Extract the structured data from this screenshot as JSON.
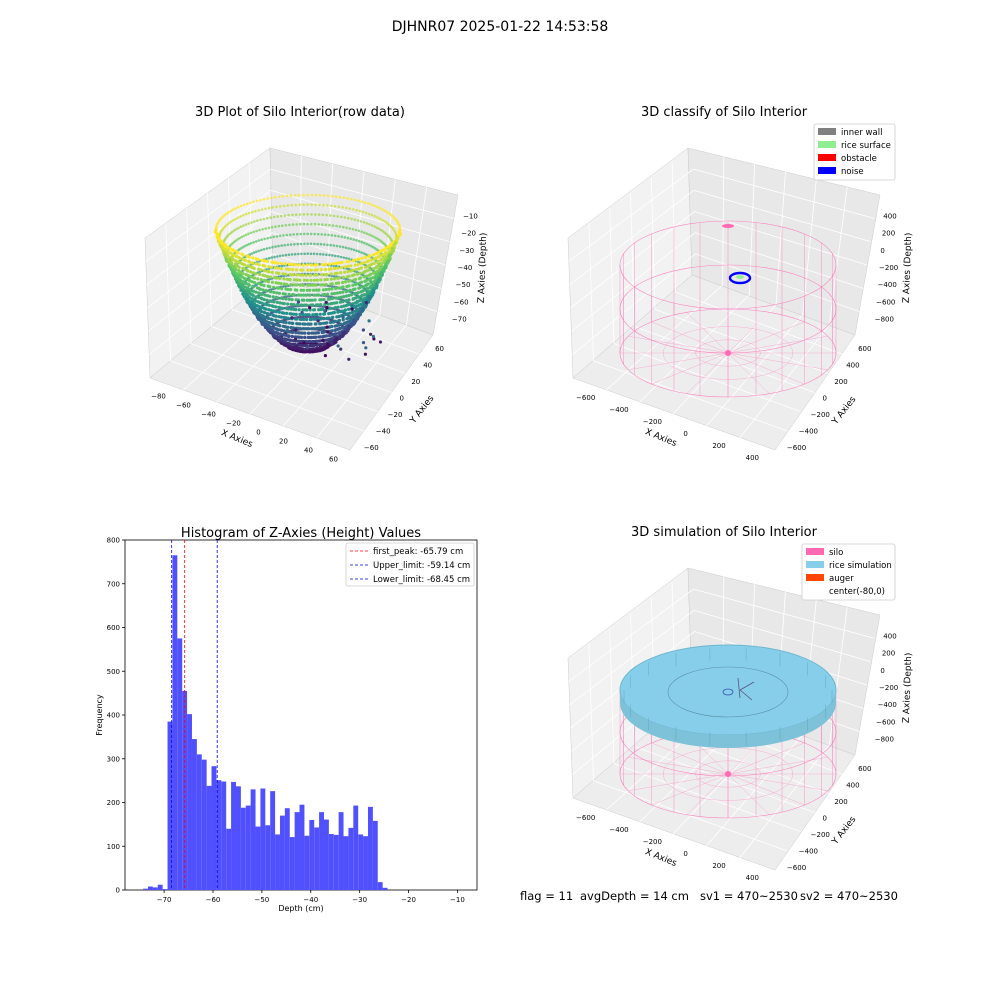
{
  "suptitle": "DJHNR07 2025-01-22 14:53:58",
  "footer": {
    "flag": "flag = 11",
    "avg": "avgDepth = 14 cm",
    "sv1": "sv1 = 470~2530",
    "sv2": "sv2 = 470~2530"
  },
  "colors": {
    "histogram_bar": "#5050ff",
    "peak_line": "#ff0000",
    "limit_line": "#0000ff",
    "silo_wire": "#ff69b4",
    "rice_sim": "#87ceeb",
    "auger": "#ff4500",
    "inner_wall": "#808080",
    "rice_surface": "#90ee90",
    "obstacle": "#ff0000",
    "noise": "#0000ff"
  },
  "chart_data": [
    {
      "type": "scatter",
      "projection": "3d",
      "title": "3D Plot of Silo Interior(row data)",
      "xlabel": "X Axies",
      "ylabel": "Y Axies",
      "zlabel": "Z Axies (Depth)",
      "xticks": [
        "−80",
        "−60",
        "−40",
        "−20",
        "0",
        "20",
        "40",
        "60"
      ],
      "yticks": [
        "−60",
        "−40",
        "−20",
        "0",
        "20",
        "40",
        "60"
      ],
      "zticks": [
        "−10",
        "−20",
        "−30",
        "−40",
        "−50",
        "−60",
        "−70"
      ],
      "xlim": [
        -80,
        70
      ],
      "ylim": [
        -65,
        65
      ],
      "zlim": [
        -75,
        -10
      ],
      "colormap": "viridis",
      "shape": "bowl"
    },
    {
      "type": "scatter",
      "projection": "3d",
      "title": "3D classify of Silo Interior",
      "xlabel": "X Axies",
      "ylabel": "Y Axies",
      "zlabel": "Z Axies (Depth)",
      "xticks": [
        "−600",
        "−400",
        "−200",
        "0",
        "200",
        "400"
      ],
      "yticks": [
        "−600",
        "−400",
        "−200",
        "0",
        "200",
        "400",
        "600"
      ],
      "zticks": [
        "400",
        "200",
        "0",
        "−200",
        "−400",
        "−600",
        "−800"
      ],
      "legend": [
        "inner wall",
        "rice surface",
        "obstacle",
        "noise"
      ],
      "legend_loc": "upper right"
    },
    {
      "type": "bar",
      "title": "Histogram of Z-Axies (Height) Values",
      "xlabel": "Depth (cm)",
      "ylabel": "Frequency",
      "xlim": [
        -78,
        -6
      ],
      "ylim": [
        0,
        800
      ],
      "xticks": [
        -70,
        -60,
        -50,
        -40,
        -30,
        -20,
        -10
      ],
      "xtick_labels": [
        "−70",
        "−60",
        "−50",
        "−40",
        "−30",
        "−20",
        "−10"
      ],
      "yticks": [
        0,
        100,
        200,
        300,
        400,
        500,
        600,
        700,
        800
      ],
      "bin_start": -74.3,
      "bin_width": 1.0,
      "values": [
        3,
        8,
        6,
        12,
        2,
        385,
        765,
        575,
        455,
        402,
        345,
        310,
        298,
        238,
        283,
        251,
        248,
        140,
        247,
        237,
        188,
        193,
        230,
        145,
        232,
        148,
        226,
        127,
        170,
        187,
        121,
        178,
        195,
        124,
        160,
        143,
        178,
        161,
        128,
        126,
        178,
        123,
        142,
        193,
        127,
        123,
        190,
        158,
        18,
        5
      ],
      "lines": [
        {
          "name": "first_peak: -65.79 cm",
          "x": -65.79,
          "color": "#ff0000"
        },
        {
          "name": "Upper_limit: -59.14 cm",
          "x": -59.14,
          "color": "#0000ff"
        },
        {
          "name": "Lower_limit: -68.45 cm",
          "x": -68.45,
          "color": "#0000ff"
        }
      ],
      "legend_loc": "upper right"
    },
    {
      "type": "scatter",
      "projection": "3d",
      "title": "3D simulation of Silo Interior",
      "xlabel": "X Axies",
      "ylabel": "Y Axies",
      "zlabel": "Z Axies (Depth)",
      "xticks": [
        "−600",
        "−400",
        "−200",
        "0",
        "200",
        "400"
      ],
      "yticks": [
        "−600",
        "−400",
        "−200",
        "0",
        "200",
        "400",
        "600"
      ],
      "zticks": [
        "400",
        "200",
        "0",
        "−200",
        "−400",
        "−600",
        "−800"
      ],
      "legend": [
        "silo",
        "rice simulation",
        "auger",
        "center(-80,0)"
      ],
      "legend_loc": "upper right"
    }
  ]
}
